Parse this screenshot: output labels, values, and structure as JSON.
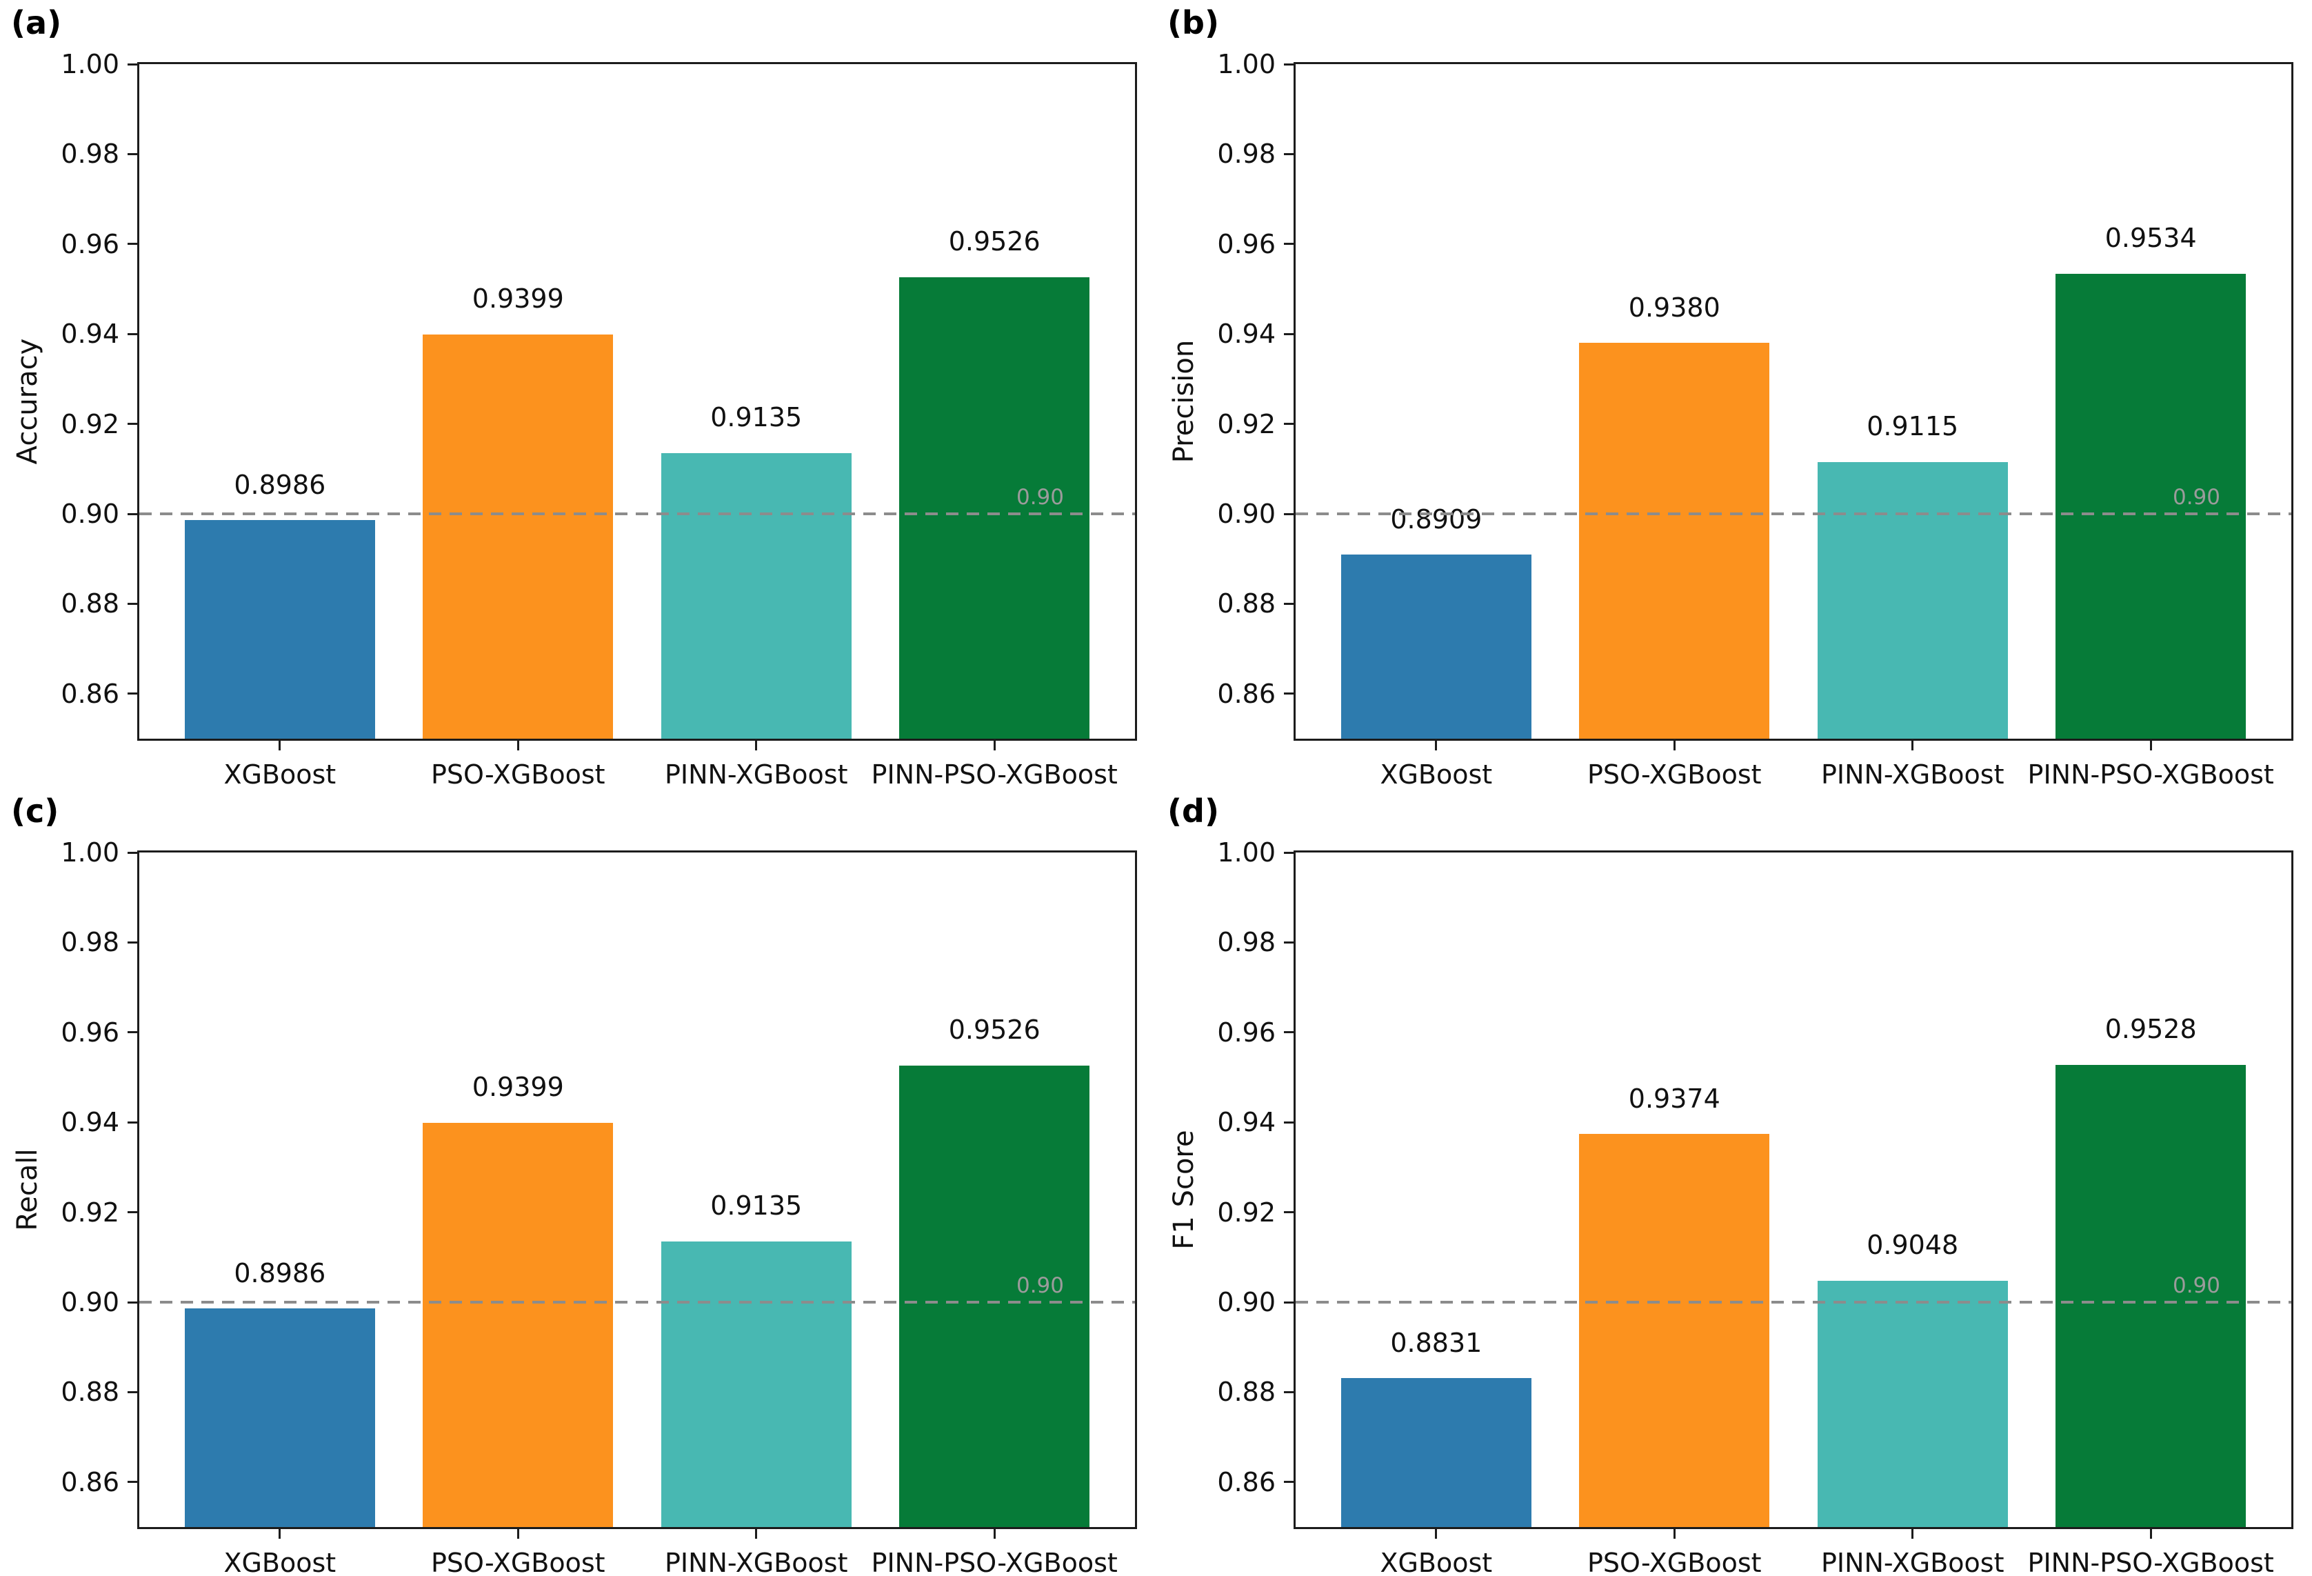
{
  "style": {
    "background": "#FFFFFF",
    "axis_color": "#1C1C1C",
    "text_color": "#111111"
  },
  "chart_data": [
    {
      "type": "bar",
      "panel_label": "(a)",
      "ylabel": "Accuracy",
      "xlabel": "",
      "categories": [
        "XGBoost",
        "PSO-XGBoost",
        "PINN-XGBoost",
        "PINN-PSO-XGBoost"
      ],
      "values": [
        0.8986,
        0.9399,
        0.9135,
        0.9526
      ],
      "value_labels": [
        "0.8986",
        "0.9399",
        "0.9135",
        "0.9526"
      ],
      "bar_colors": [
        "#2D7BAE",
        "#FC921E",
        "#48B8B2",
        "#067B38"
      ],
      "ylim": [
        0.85,
        1.0
      ],
      "yticks": [
        "0.86",
        "0.88",
        "0.90",
        "0.92",
        "0.94",
        "0.96",
        "0.98",
        "1.00"
      ],
      "grid": false,
      "legend": null,
      "reference_line": {
        "y": 0.9,
        "label": "0.90",
        "style": "dashed",
        "line_color": "#8C8C8C",
        "label_color": "#9B9B9B"
      }
    },
    {
      "type": "bar",
      "panel_label": "(b)",
      "ylabel": "Precision",
      "xlabel": "",
      "categories": [
        "XGBoost",
        "PSO-XGBoost",
        "PINN-XGBoost",
        "PINN-PSO-XGBoost"
      ],
      "values": [
        0.8909,
        0.938,
        0.9115,
        0.9534
      ],
      "value_labels": [
        "0.8909",
        "0.9380",
        "0.9115",
        "0.9534"
      ],
      "bar_colors": [
        "#2D7BAE",
        "#FC921E",
        "#48B8B2",
        "#067B38"
      ],
      "ylim": [
        0.85,
        1.0
      ],
      "yticks": [
        "0.86",
        "0.88",
        "0.90",
        "0.92",
        "0.94",
        "0.96",
        "0.98",
        "1.00"
      ],
      "grid": false,
      "legend": null,
      "reference_line": {
        "y": 0.9,
        "label": "0.90",
        "style": "dashed",
        "line_color": "#8C8C8C",
        "label_color": "#9B9B9B"
      }
    },
    {
      "type": "bar",
      "panel_label": "(c)",
      "ylabel": "Recall",
      "xlabel": "",
      "categories": [
        "XGBoost",
        "PSO-XGBoost",
        "PINN-XGBoost",
        "PINN-PSO-XGBoost"
      ],
      "values": [
        0.8986,
        0.9399,
        0.9135,
        0.9526
      ],
      "value_labels": [
        "0.8986",
        "0.9399",
        "0.9135",
        "0.9526"
      ],
      "bar_colors": [
        "#2D7BAE",
        "#FC921E",
        "#48B8B2",
        "#067B38"
      ],
      "ylim": [
        0.85,
        1.0
      ],
      "yticks": [
        "0.86",
        "0.88",
        "0.90",
        "0.92",
        "0.94",
        "0.96",
        "0.98",
        "1.00"
      ],
      "grid": false,
      "legend": null,
      "reference_line": {
        "y": 0.9,
        "label": "0.90",
        "style": "dashed",
        "line_color": "#8C8C8C",
        "label_color": "#9B9B9B"
      }
    },
    {
      "type": "bar",
      "panel_label": "(d)",
      "ylabel": "F1 Score",
      "xlabel": "",
      "categories": [
        "XGBoost",
        "PSO-XGBoost",
        "PINN-XGBoost",
        "PINN-PSO-XGBoost"
      ],
      "values": [
        0.8831,
        0.9374,
        0.9048,
        0.9528
      ],
      "value_labels": [
        "0.8831",
        "0.9374",
        "0.9048",
        "0.9528"
      ],
      "bar_colors": [
        "#2D7BAE",
        "#FC921E",
        "#48B8B2",
        "#067B38"
      ],
      "ylim": [
        0.85,
        1.0
      ],
      "yticks": [
        "0.86",
        "0.88",
        "0.90",
        "0.92",
        "0.94",
        "0.96",
        "0.98",
        "1.00"
      ],
      "grid": false,
      "legend": null,
      "reference_line": {
        "y": 0.9,
        "label": "0.90",
        "style": "dashed",
        "line_color": "#8C8C8C",
        "label_color": "#9B9B9B"
      }
    }
  ]
}
